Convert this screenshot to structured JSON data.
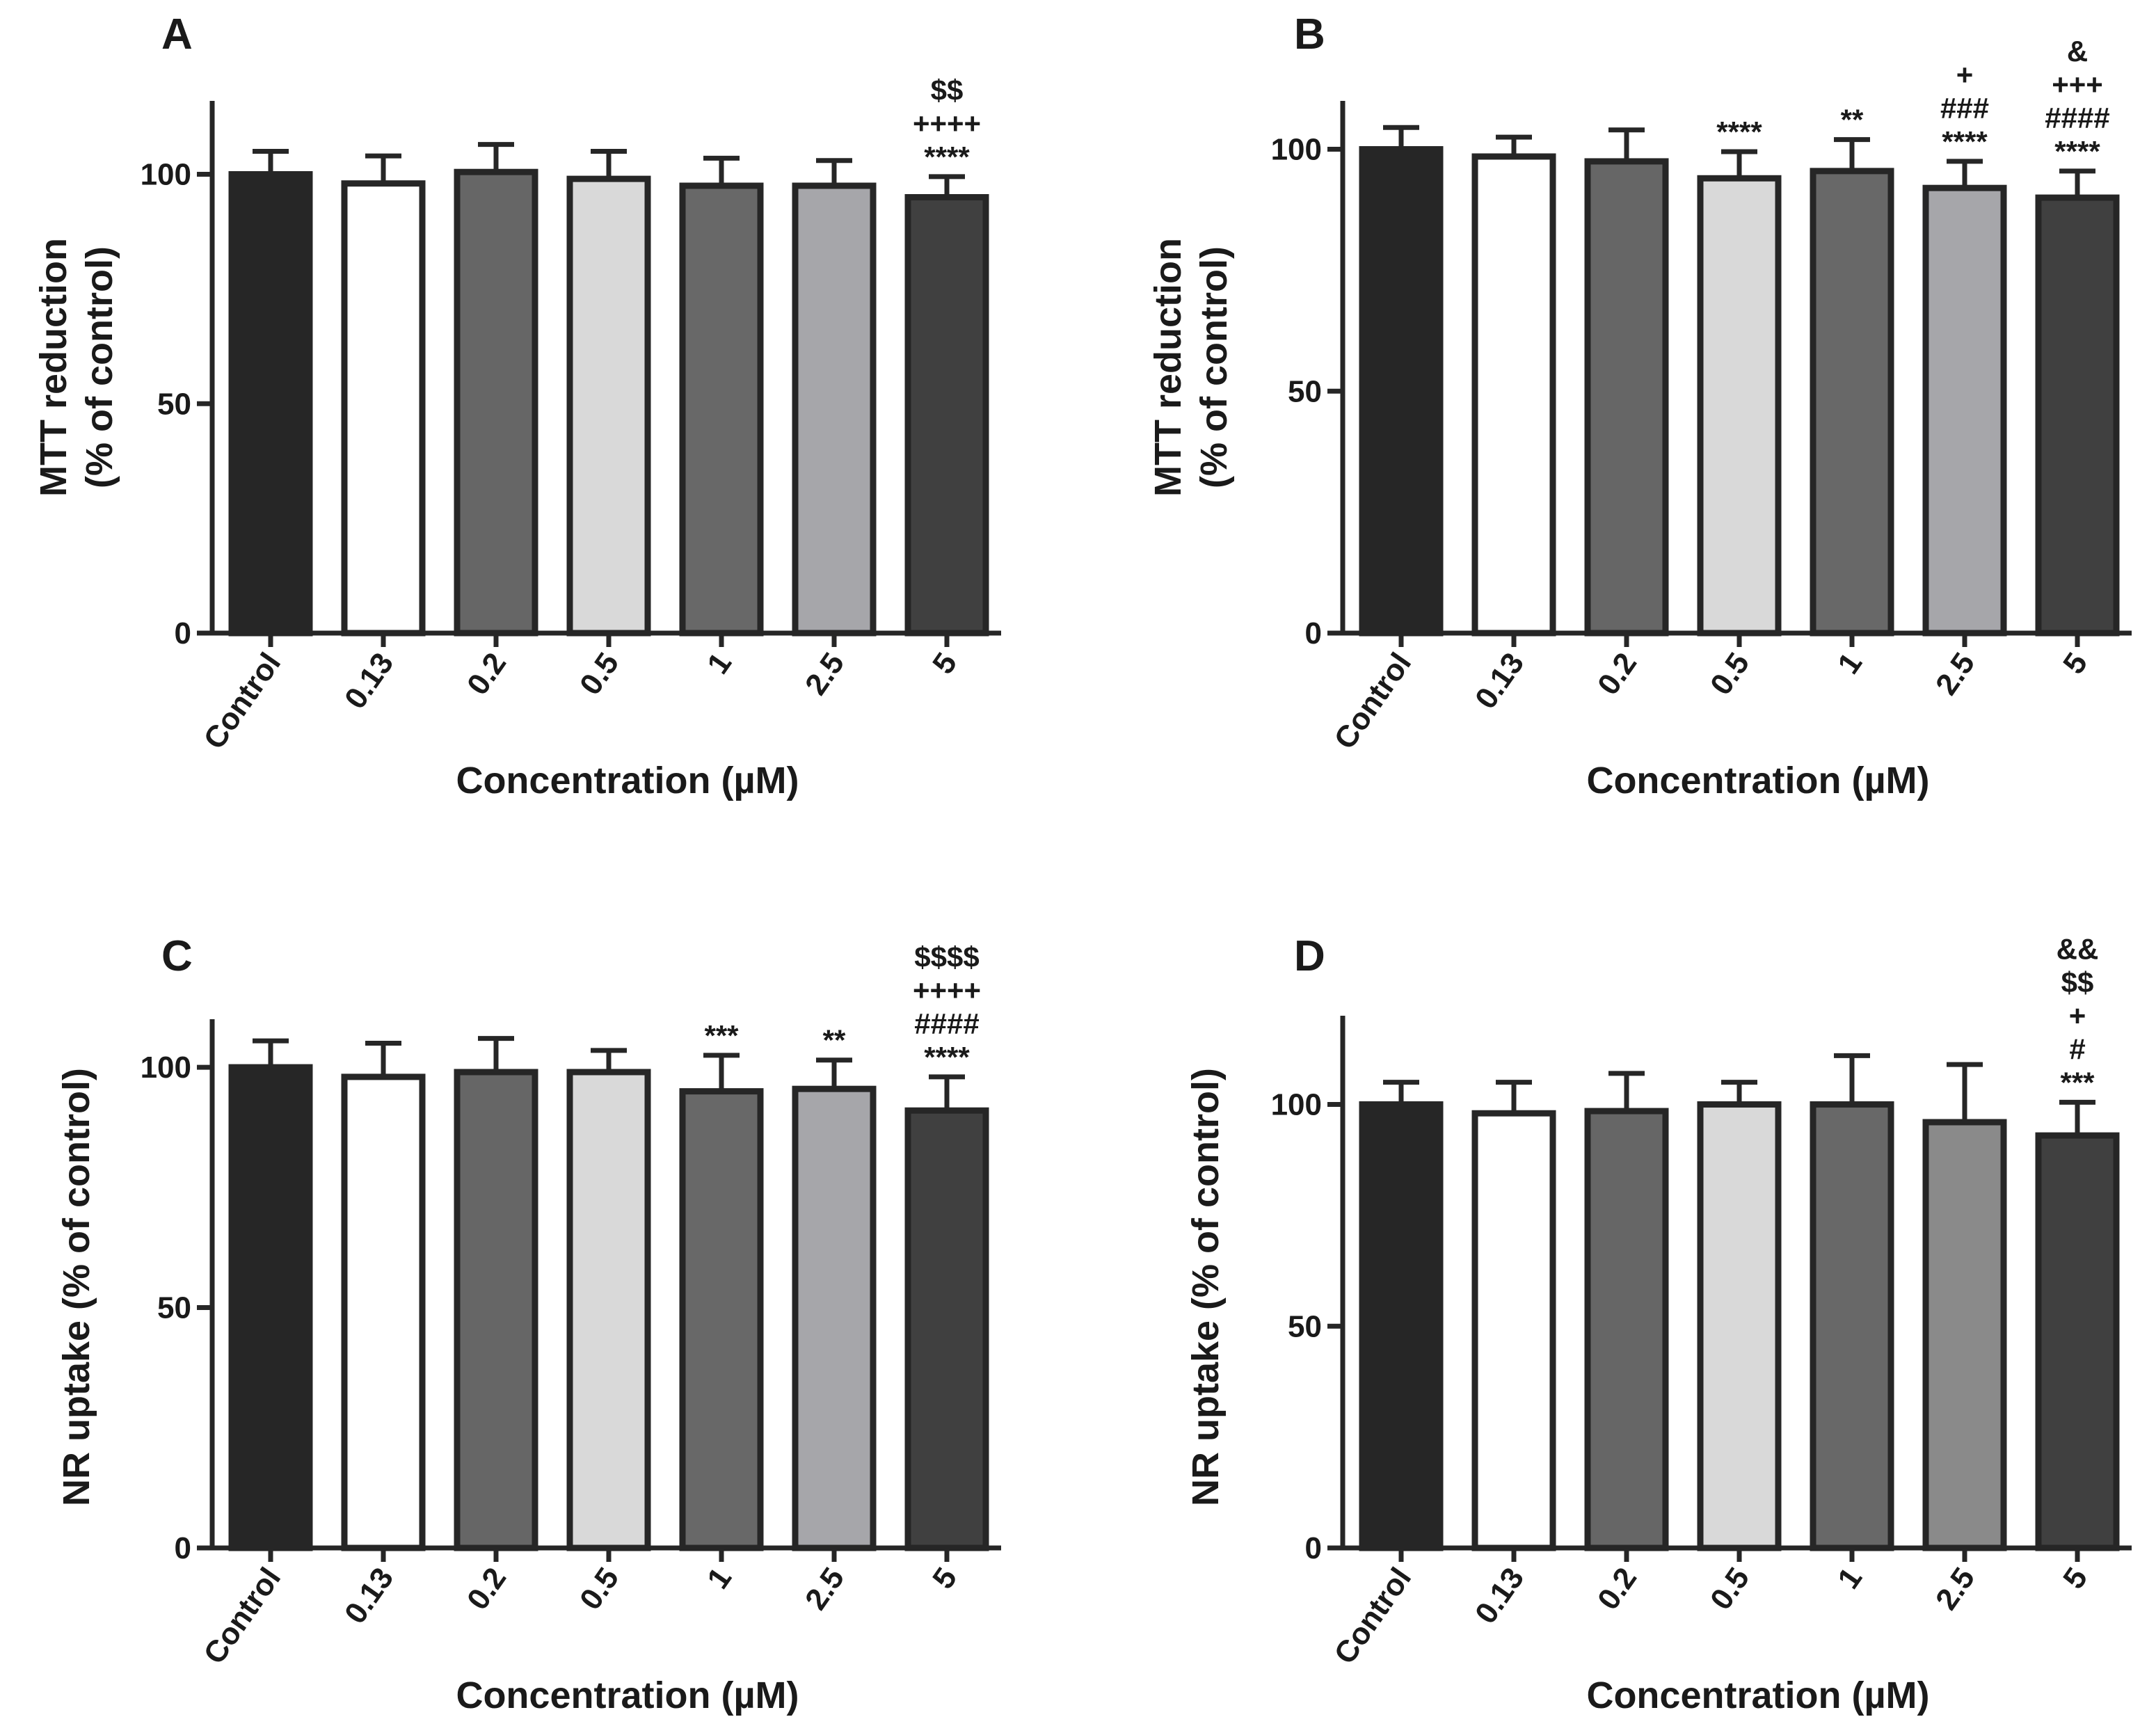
{
  "colors": {
    "Control": "#262626",
    "0.13": "#ffffff",
    "0.2": "#666666",
    "0.5": "#d9d9d9",
    "1": "#686868",
    "2.5": "#a6a6aa",
    "5": "#404040",
    "2.5_D": "#8a8a8a",
    "stroke": "#262626"
  },
  "chart_data": [
    {
      "type": "bar",
      "panel": "A",
      "categories": [
        "Control",
        "0.13",
        "0.2",
        "0.5",
        "1",
        "2.5",
        "5"
      ],
      "values": [
        100,
        98,
        100.5,
        99,
        97.5,
        97.5,
        95
      ],
      "errors": [
        5,
        6,
        6,
        6,
        6,
        5.5,
        4.5
      ],
      "annotations": [
        [],
        [],
        [],
        [],
        [],
        [],
        [
          "$$",
          "++++",
          "****"
        ]
      ],
      "xlabel": "Concentration (µM)",
      "ylabel": [
        "MTT reduction",
        "(% of control)"
      ],
      "ylim": [
        0,
        116
      ],
      "yticks": [
        0,
        50,
        100
      ],
      "grid": false
    },
    {
      "type": "bar",
      "panel": "B",
      "categories": [
        "Control",
        "0.13",
        "0.2",
        "0.5",
        "1",
        "2.5",
        "5"
      ],
      "values": [
        100,
        98.5,
        97.5,
        94,
        95.5,
        92,
        90
      ],
      "errors": [
        4.5,
        4,
        6.5,
        5.5,
        6.5,
        5.5,
        5.5
      ],
      "annotations": [
        [],
        [],
        [],
        [
          "****"
        ],
        [
          "**"
        ],
        [
          "+",
          "###",
          "****"
        ],
        [
          "&",
          "+++",
          "####",
          "****"
        ]
      ],
      "xlabel": "Concentration (µM)",
      "ylabel": [
        "MTT reduction",
        "(% of control)"
      ],
      "ylim": [
        0,
        110
      ],
      "yticks": [
        0,
        50,
        100
      ],
      "grid": false
    },
    {
      "type": "bar",
      "panel": "C",
      "categories": [
        "Control",
        "0.13",
        "0.2",
        "0.5",
        "1",
        "2.5",
        "5"
      ],
      "values": [
        100,
        98,
        99,
        99,
        95,
        95.5,
        91
      ],
      "errors": [
        5.5,
        7,
        7,
        4.5,
        7.5,
        6,
        7
      ],
      "annotations": [
        [],
        [],
        [],
        [],
        [
          "***"
        ],
        [
          "**"
        ],
        [
          "$$$$",
          "++++",
          "####",
          "****"
        ]
      ],
      "xlabel": "Concentration (µM)",
      "ylabel": [
        "NR uptake (% of control)"
      ],
      "ylim": [
        0,
        110
      ],
      "yticks": [
        0,
        50,
        100
      ],
      "grid": false
    },
    {
      "type": "bar",
      "panel": "D",
      "categories": [
        "Control",
        "0.13",
        "0.2",
        "0.5",
        "1",
        "2.5",
        "5"
      ],
      "values": [
        100,
        98,
        98.5,
        100,
        100,
        96,
        93
      ],
      "errors": [
        5,
        7,
        8.5,
        5,
        11,
        13,
        7.5
      ],
      "annotations": [
        [],
        [],
        [],
        [],
        [],
        [],
        [
          "&&",
          "$$",
          "+",
          "#",
          "***"
        ]
      ],
      "xlabel": "Concentration (µM)",
      "ylabel": [
        "NR uptake (% of control)"
      ],
      "ylim": [
        0,
        120
      ],
      "yticks": [
        0,
        50,
        100
      ],
      "grid": false
    }
  ]
}
